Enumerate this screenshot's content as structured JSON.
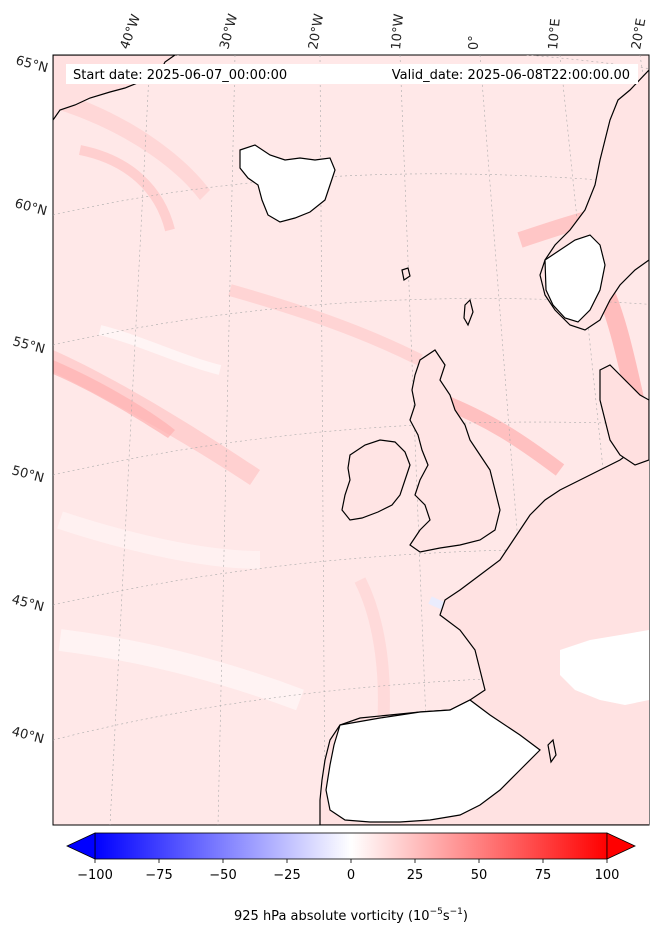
{
  "header": {
    "start_date": "Start date: 2025-06-07_00:00:00",
    "valid_date": "Valid_date: 2025-06-08T22:00:00.00"
  },
  "longitude_labels": [
    "40°W",
    "30°W",
    "20°W",
    "10°W",
    "0°",
    "10°E",
    "20°E"
  ],
  "latitude_labels": [
    "65°N",
    "60°N",
    "55°N",
    "50°N",
    "45°N",
    "40°N"
  ],
  "colorbar": {
    "label": "925 hPa absolute vorticity (10",
    "label_exp1": "−5",
    "label_mid": "s",
    "label_exp2": "−1",
    "label_end": ")",
    "ticks": [
      "−100",
      "−75",
      "−50",
      "−25",
      "0",
      "25",
      "50",
      "75",
      "100"
    ],
    "min": -100,
    "max": 100,
    "negative_color": "#0000ff",
    "positive_color": "#ff0000",
    "neutral_color": "#ffffff"
  },
  "map": {
    "background_color": "#ffeaea",
    "coastline_color": "#000000",
    "projection": "stereographic"
  }
}
